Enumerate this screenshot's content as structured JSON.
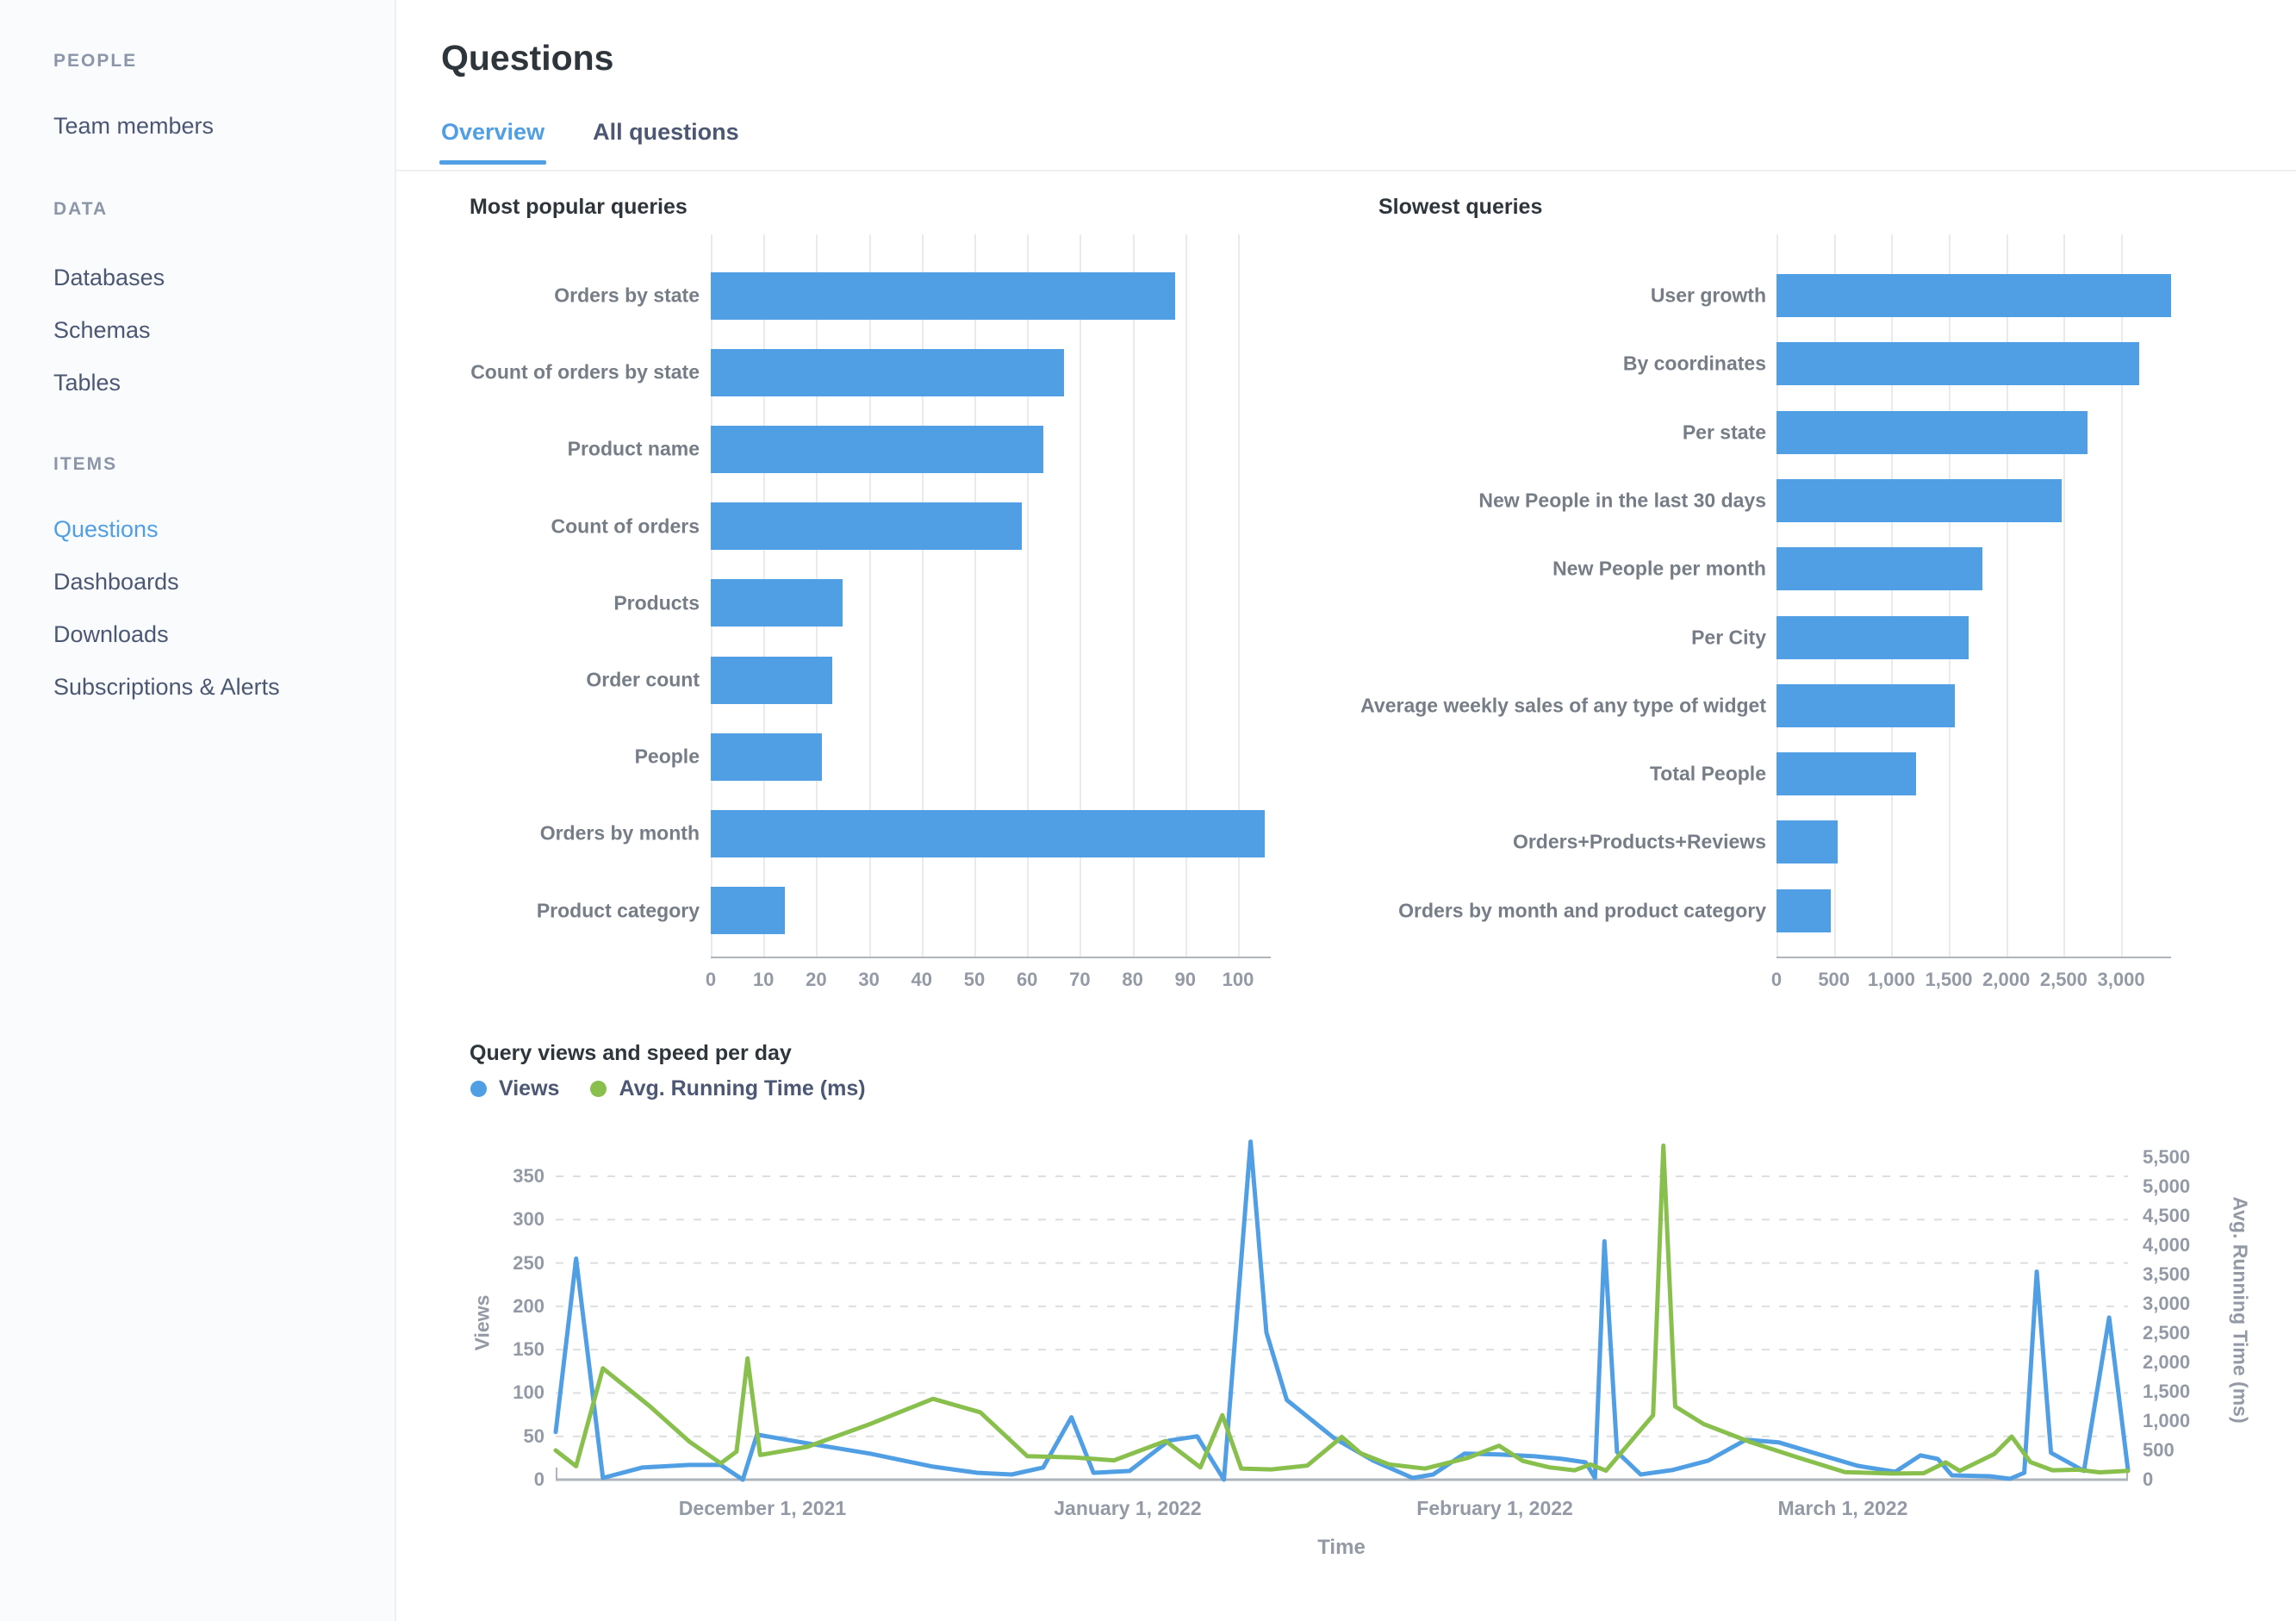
{
  "colors": {
    "accent": "#509EE3",
    "green": "#88BF4D",
    "text_dark": "#2E353B",
    "text_gray": "#949AA5"
  },
  "sidebar": {
    "sections": [
      {
        "label": "PEOPLE",
        "items": [
          {
            "label": "Team members",
            "active": false
          }
        ]
      },
      {
        "label": "DATA",
        "items": [
          {
            "label": "Databases",
            "active": false
          },
          {
            "label": "Schemas",
            "active": false
          },
          {
            "label": "Tables",
            "active": false
          }
        ]
      },
      {
        "label": "ITEMS",
        "items": [
          {
            "label": "Questions",
            "active": true
          },
          {
            "label": "Dashboards",
            "active": false
          },
          {
            "label": "Downloads",
            "active": false
          },
          {
            "label": "Subscriptions & Alerts",
            "active": false
          }
        ]
      }
    ]
  },
  "header": {
    "title": "Questions",
    "tabs": [
      {
        "label": "Overview",
        "active": true
      },
      {
        "label": "All questions",
        "active": false
      }
    ]
  },
  "chart_data": [
    {
      "type": "bar",
      "orientation": "horizontal",
      "title": "Most popular queries",
      "categories": [
        "Orders by state",
        "Count of orders by state",
        "Product name",
        "Count of orders",
        "Products",
        "Order count",
        "People",
        "Orders by month",
        "Product category"
      ],
      "values": [
        88,
        67,
        63,
        59,
        25,
        23,
        21,
        105,
        14
      ],
      "xlabel": "",
      "ylabel": "",
      "xlim": [
        0,
        106
      ],
      "grid": true,
      "xticks": [
        {
          "v": 0,
          "label": "0"
        },
        {
          "v": 10,
          "label": "10"
        },
        {
          "v": 20,
          "label": "20"
        },
        {
          "v": 30,
          "label": "30"
        },
        {
          "v": 40,
          "label": "40"
        },
        {
          "v": 50,
          "label": "50"
        },
        {
          "v": 60,
          "label": "60"
        },
        {
          "v": 70,
          "label": "70"
        },
        {
          "v": 80,
          "label": "80"
        },
        {
          "v": 90,
          "label": "90"
        },
        {
          "v": 100,
          "label": "100"
        }
      ],
      "bar_color": "#509EE3"
    },
    {
      "type": "bar",
      "orientation": "horizontal",
      "title": "Slowest queries",
      "categories": [
        "User growth",
        "By coordinates",
        "Per state",
        "New People in the last 30 days",
        "New People per month",
        "Per City",
        "Average weekly sales of any type of widget",
        "Total People",
        "Orders+Products+Reviews",
        "Orders by month and product category"
      ],
      "values": [
        3440,
        3160,
        2710,
        2480,
        1790,
        1670,
        1550,
        1215,
        530,
        470
      ],
      "xlabel": "",
      "ylabel": "",
      "xlim": [
        0,
        3435
      ],
      "grid": true,
      "xticks": [
        {
          "v": 0,
          "label": "0"
        },
        {
          "v": 500,
          "label": "500"
        },
        {
          "v": 1000,
          "label": "1,000"
        },
        {
          "v": 1500,
          "label": "1,500"
        },
        {
          "v": 2000,
          "label": "2,000"
        },
        {
          "v": 2500,
          "label": "2,500"
        },
        {
          "v": 3000,
          "label": "3,000"
        }
      ],
      "bar_color": "#509EE3"
    },
    {
      "type": "line",
      "title": "Query views and speed per day",
      "xlabel": "Time",
      "legend_position": "top-left",
      "grid": "dashed-horizontal",
      "left_axis": {
        "label": "Views",
        "ticks": [
          {
            "v": 0,
            "label": "0"
          },
          {
            "v": 50,
            "label": "50"
          },
          {
            "v": 100,
            "label": "100"
          },
          {
            "v": 150,
            "label": "150"
          },
          {
            "v": 200,
            "label": "200"
          },
          {
            "v": 250,
            "label": "250"
          },
          {
            "v": 300,
            "label": "300"
          },
          {
            "v": 350,
            "label": "350"
          }
        ],
        "range": [
          0,
          390
        ]
      },
      "right_axis": {
        "label": "Avg. Running Time (ms)",
        "ticks": [
          {
            "v": 0,
            "label": "0"
          },
          {
            "v": 500,
            "label": "500"
          },
          {
            "v": 1000,
            "label": "1,000"
          },
          {
            "v": 1500,
            "label": "1,500"
          },
          {
            "v": 2000,
            "label": "2,000"
          },
          {
            "v": 2500,
            "label": "2,500"
          },
          {
            "v": 3000,
            "label": "3,000"
          },
          {
            "v": 3500,
            "label": "3,500"
          },
          {
            "v": 4000,
            "label": "4,000"
          },
          {
            "v": 4500,
            "label": "4,500"
          },
          {
            "v": 5000,
            "label": "5,000"
          },
          {
            "v": 5500,
            "label": "5,500"
          }
        ],
        "range": [
          0,
          5850
        ]
      },
      "x_ticks": [
        {
          "label": "December 1, 2021",
          "f": 0.1315
        },
        {
          "label": "January 1, 2022",
          "f": 0.3638
        },
        {
          "label": "February 1, 2022",
          "f": 0.5973
        },
        {
          "label": "March 1, 2022",
          "f": 0.8186
        }
      ],
      "series": [
        {
          "name": "Views",
          "axis": "left",
          "color": "#509EE3",
          "points": [
            [
              0.0,
              55
            ],
            [
              0.013,
              255
            ],
            [
              0.03,
              2
            ],
            [
              0.055,
              14
            ],
            [
              0.085,
              17
            ],
            [
              0.105,
              17
            ],
            [
              0.119,
              0
            ],
            [
              0.128,
              52
            ],
            [
              0.16,
              42
            ],
            [
              0.2,
              30
            ],
            [
              0.24,
              15
            ],
            [
              0.268,
              8
            ],
            [
              0.29,
              6
            ],
            [
              0.31,
              14
            ],
            [
              0.328,
              72
            ],
            [
              0.342,
              8
            ],
            [
              0.365,
              10
            ],
            [
              0.39,
              45
            ],
            [
              0.408,
              50
            ],
            [
              0.425,
              0
            ],
            [
              0.442,
              390
            ],
            [
              0.452,
              170
            ],
            [
              0.465,
              92
            ],
            [
              0.495,
              48
            ],
            [
              0.52,
              22
            ],
            [
              0.545,
              2
            ],
            [
              0.558,
              6
            ],
            [
              0.578,
              30
            ],
            [
              0.6,
              29
            ],
            [
              0.622,
              27
            ],
            [
              0.64,
              24
            ],
            [
              0.655,
              20
            ],
            [
              0.661,
              2
            ],
            [
              0.667,
              275
            ],
            [
              0.675,
              32
            ],
            [
              0.69,
              6
            ],
            [
              0.71,
              11
            ],
            [
              0.733,
              22
            ],
            [
              0.757,
              46
            ],
            [
              0.778,
              43
            ],
            [
              0.8,
              31
            ],
            [
              0.828,
              16
            ],
            [
              0.852,
              9
            ],
            [
              0.868,
              28
            ],
            [
              0.879,
              24
            ],
            [
              0.888,
              5
            ],
            [
              0.912,
              4
            ],
            [
              0.925,
              1
            ],
            [
              0.934,
              8
            ],
            [
              0.942,
              240
            ],
            [
              0.951,
              31
            ],
            [
              0.972,
              10
            ],
            [
              0.988,
              187
            ],
            [
              1.0,
              11
            ]
          ]
        },
        {
          "name": "Avg. Running Time (ms)",
          "axis": "right",
          "color": "#88BF4D",
          "points": [
            [
              0.0,
              500
            ],
            [
              0.013,
              230
            ],
            [
              0.03,
              1900
            ],
            [
              0.06,
              1250
            ],
            [
              0.085,
              650
            ],
            [
              0.105,
              280
            ],
            [
              0.115,
              480
            ],
            [
              0.122,
              2070
            ],
            [
              0.13,
              420
            ],
            [
              0.16,
              560
            ],
            [
              0.2,
              950
            ],
            [
              0.24,
              1380
            ],
            [
              0.27,
              1150
            ],
            [
              0.3,
              400
            ],
            [
              0.33,
              380
            ],
            [
              0.355,
              330
            ],
            [
              0.388,
              660
            ],
            [
              0.41,
              210
            ],
            [
              0.424,
              1100
            ],
            [
              0.436,
              190
            ],
            [
              0.455,
              175
            ],
            [
              0.478,
              240
            ],
            [
              0.5,
              730
            ],
            [
              0.512,
              450
            ],
            [
              0.53,
              260
            ],
            [
              0.553,
              190
            ],
            [
              0.58,
              370
            ],
            [
              0.6,
              580
            ],
            [
              0.615,
              320
            ],
            [
              0.632,
              210
            ],
            [
              0.648,
              160
            ],
            [
              0.658,
              260
            ],
            [
              0.668,
              155
            ],
            [
              0.698,
              1100
            ],
            [
              0.7045,
              5700
            ],
            [
              0.712,
              1250
            ],
            [
              0.73,
              950
            ],
            [
              0.76,
              640
            ],
            [
              0.79,
              380
            ],
            [
              0.82,
              130
            ],
            [
              0.85,
              105
            ],
            [
              0.87,
              110
            ],
            [
              0.884,
              295
            ],
            [
              0.893,
              150
            ],
            [
              0.915,
              440
            ],
            [
              0.926,
              735
            ],
            [
              0.938,
              300
            ],
            [
              0.952,
              160
            ],
            [
              0.968,
              170
            ],
            [
              0.982,
              125
            ],
            [
              1.0,
              150
            ]
          ]
        }
      ]
    }
  ]
}
